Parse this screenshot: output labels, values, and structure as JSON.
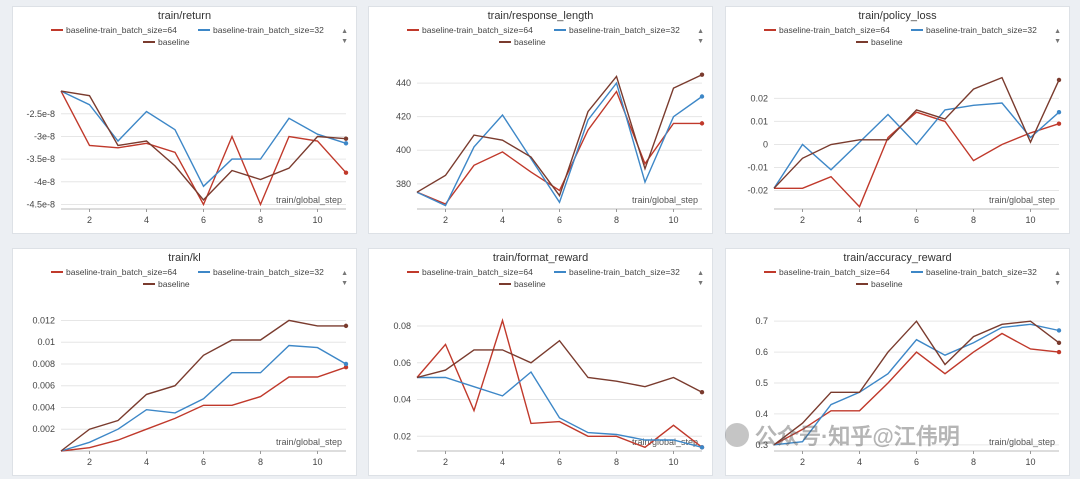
{
  "watermark": {
    "text": "公众号·知乎@江伟明",
    "icon": "wechat-icon"
  },
  "colors": {
    "s1": "#c0392b",
    "s2": "#3d87c7",
    "s3": "#7a3b2e"
  },
  "chart_data": [
    {
      "type": "line",
      "title": "train/return",
      "xlabel": "train/global_step",
      "xticks": [
        2,
        4,
        6,
        8,
        10
      ],
      "xlim": [
        1,
        11
      ],
      "ylim": [
        -4.6e-08,
        -1.6e-08
      ],
      "yticks": [
        -2.5e-08,
        -3e-08,
        -3.5e-08,
        -4e-08,
        -4.5e-08
      ],
      "ytick_labels": [
        "-2.5e-8",
        "-3e-8",
        "-3.5e-8",
        "-4e-8",
        "-4.5e-8"
      ],
      "x": [
        1,
        2,
        3,
        4,
        5,
        6,
        7,
        8,
        9,
        10,
        11
      ],
      "series": [
        {
          "name": "baseline-train_batch_size=64",
          "values": [
            -2e-08,
            -3.2e-08,
            -3.25e-08,
            -3.15e-08,
            -3.35e-08,
            -4.5e-08,
            -3e-08,
            -4.5e-08,
            -3e-08,
            -3.1e-08,
            -3.8e-08
          ]
        },
        {
          "name": "baseline-train_batch_size=32",
          "values": [
            -2e-08,
            -2.3e-08,
            -3.1e-08,
            -2.45e-08,
            -2.85e-08,
            -4.1e-08,
            -3.5e-08,
            -3.5e-08,
            -2.6e-08,
            -2.95e-08,
            -3.15e-08
          ]
        },
        {
          "name": "baseline",
          "values": [
            -2e-08,
            -2.1e-08,
            -3.2e-08,
            -3.1e-08,
            -3.65e-08,
            -4.4e-08,
            -3.75e-08,
            -3.95e-08,
            -3.7e-08,
            -3e-08,
            -3.05e-08
          ]
        }
      ]
    },
    {
      "type": "line",
      "title": "train/response_length",
      "xlabel": "train/global_step",
      "xticks": [
        2,
        4,
        6,
        8,
        10
      ],
      "xlim": [
        1,
        11
      ],
      "ylim": [
        365,
        446
      ],
      "yticks": [
        380,
        400,
        420,
        440
      ],
      "ytick_labels": [
        "380",
        "400",
        "420",
        "440"
      ],
      "x": [
        1,
        2,
        3,
        4,
        5,
        6,
        7,
        8,
        9,
        10,
        11
      ],
      "series": [
        {
          "name": "baseline-train_batch_size=64",
          "values": [
            375,
            368,
            391,
            399,
            387,
            376,
            412,
            435,
            392,
            416,
            416
          ]
        },
        {
          "name": "baseline-train_batch_size=32",
          "values": [
            375,
            367,
            402,
            421,
            395,
            369,
            418,
            440,
            381,
            420,
            432
          ]
        },
        {
          "name": "baseline",
          "values": [
            375,
            385,
            409,
            406,
            396,
            373,
            423,
            444,
            389,
            437,
            445
          ]
        }
      ]
    },
    {
      "type": "line",
      "title": "train/policy_loss",
      "xlabel": "train/global_step",
      "xticks": [
        2,
        4,
        6,
        8,
        10
      ],
      "xlim": [
        1,
        11
      ],
      "ylim": [
        -0.028,
        0.031
      ],
      "yticks": [
        0.02,
        0.01,
        0,
        -0.01,
        -0.02
      ],
      "ytick_labels": [
        "0.02",
        "0.01",
        "0",
        "-0.01",
        "-0.02"
      ],
      "x": [
        1,
        2,
        3,
        4,
        5,
        6,
        7,
        8,
        9,
        10,
        11
      ],
      "series": [
        {
          "name": "baseline-train_batch_size=64",
          "values": [
            -0.019,
            -0.019,
            -0.014,
            -0.027,
            0.003,
            0.014,
            0.01,
            -0.007,
            0.0,
            0.005,
            0.009
          ]
        },
        {
          "name": "baseline-train_batch_size=32",
          "values": [
            -0.019,
            0.0,
            -0.011,
            0.001,
            0.013,
            0.0,
            0.015,
            0.017,
            0.018,
            0.003,
            0.014
          ]
        },
        {
          "name": "baseline",
          "values": [
            -0.019,
            -0.006,
            0.0,
            0.002,
            0.002,
            0.015,
            0.011,
            0.024,
            0.029,
            0.001,
            0.028
          ]
        }
      ]
    },
    {
      "type": "line",
      "title": "train/kl",
      "xlabel": "train/global_step",
      "xticks": [
        2,
        4,
        6,
        8,
        10
      ],
      "xlim": [
        1,
        11
      ],
      "ylim": [
        0,
        0.0125
      ],
      "yticks": [
        0.012,
        0.01,
        0.008,
        0.006,
        0.004,
        0.002
      ],
      "ytick_labels": [
        "0.012",
        "0.01",
        "0.008",
        "0.006",
        "0.004",
        "0.002"
      ],
      "x": [
        1,
        2,
        3,
        4,
        5,
        6,
        7,
        8,
        9,
        10,
        11
      ],
      "series": [
        {
          "name": "baseline-train_batch_size=64",
          "values": [
            0,
            0.0003,
            0.001,
            0.002,
            0.003,
            0.0042,
            0.0042,
            0.005,
            0.0068,
            0.0068,
            0.0077
          ]
        },
        {
          "name": "baseline-train_batch_size=32",
          "values": [
            0,
            0.0008,
            0.002,
            0.0038,
            0.0035,
            0.0048,
            0.0072,
            0.0072,
            0.0097,
            0.0095,
            0.008
          ]
        },
        {
          "name": "baseline",
          "values": [
            0,
            0.002,
            0.0028,
            0.0052,
            0.006,
            0.0088,
            0.0102,
            0.0102,
            0.012,
            0.0115,
            0.0115
          ]
        }
      ]
    },
    {
      "type": "line",
      "title": "train/format_reward",
      "xlabel": "train/global_step",
      "xticks": [
        2,
        4,
        6,
        8,
        10
      ],
      "xlim": [
        1,
        11
      ],
      "ylim": [
        0.012,
        0.086
      ],
      "yticks": [
        0.08,
        0.06,
        0.04,
        0.02
      ],
      "ytick_labels": [
        "0.08",
        "0.06",
        "0.04",
        "0.02"
      ],
      "x": [
        1,
        2,
        3,
        4,
        5,
        6,
        7,
        8,
        9,
        10,
        11
      ],
      "series": [
        {
          "name": "baseline-train_batch_size=64",
          "values": [
            0.052,
            0.07,
            0.034,
            0.083,
            0.027,
            0.028,
            0.02,
            0.02,
            0.014,
            0.026,
            0.014
          ]
        },
        {
          "name": "baseline-train_batch_size=32",
          "values": [
            0.052,
            0.052,
            0.047,
            0.042,
            0.055,
            0.03,
            0.022,
            0.021,
            0.018,
            0.018,
            0.014
          ]
        },
        {
          "name": "baseline",
          "values": [
            0.052,
            0.056,
            0.067,
            0.067,
            0.06,
            0.072,
            0.052,
            0.05,
            0.047,
            0.052,
            0.044
          ]
        }
      ]
    },
    {
      "type": "line",
      "title": "train/accuracy_reward",
      "xlabel": "train/global_step",
      "xticks": [
        2,
        4,
        6,
        8,
        10
      ],
      "xlim": [
        1,
        11
      ],
      "ylim": [
        0.28,
        0.72
      ],
      "yticks": [
        0.7,
        0.6,
        0.5,
        0.4,
        0.3
      ],
      "ytick_labels": [
        "0.7",
        "0.6",
        "0.5",
        "0.4",
        "0.3"
      ],
      "x": [
        1,
        2,
        3,
        4,
        5,
        6,
        7,
        8,
        9,
        10,
        11
      ],
      "series": [
        {
          "name": "baseline-train_batch_size=64",
          "values": [
            0.3,
            0.35,
            0.41,
            0.41,
            0.5,
            0.6,
            0.53,
            0.6,
            0.66,
            0.61,
            0.6
          ]
        },
        {
          "name": "baseline-train_batch_size=32",
          "values": [
            0.3,
            0.31,
            0.43,
            0.47,
            0.53,
            0.64,
            0.59,
            0.63,
            0.68,
            0.69,
            0.67
          ]
        },
        {
          "name": "baseline",
          "values": [
            0.3,
            0.37,
            0.47,
            0.47,
            0.6,
            0.7,
            0.56,
            0.65,
            0.69,
            0.7,
            0.63
          ]
        }
      ]
    }
  ]
}
